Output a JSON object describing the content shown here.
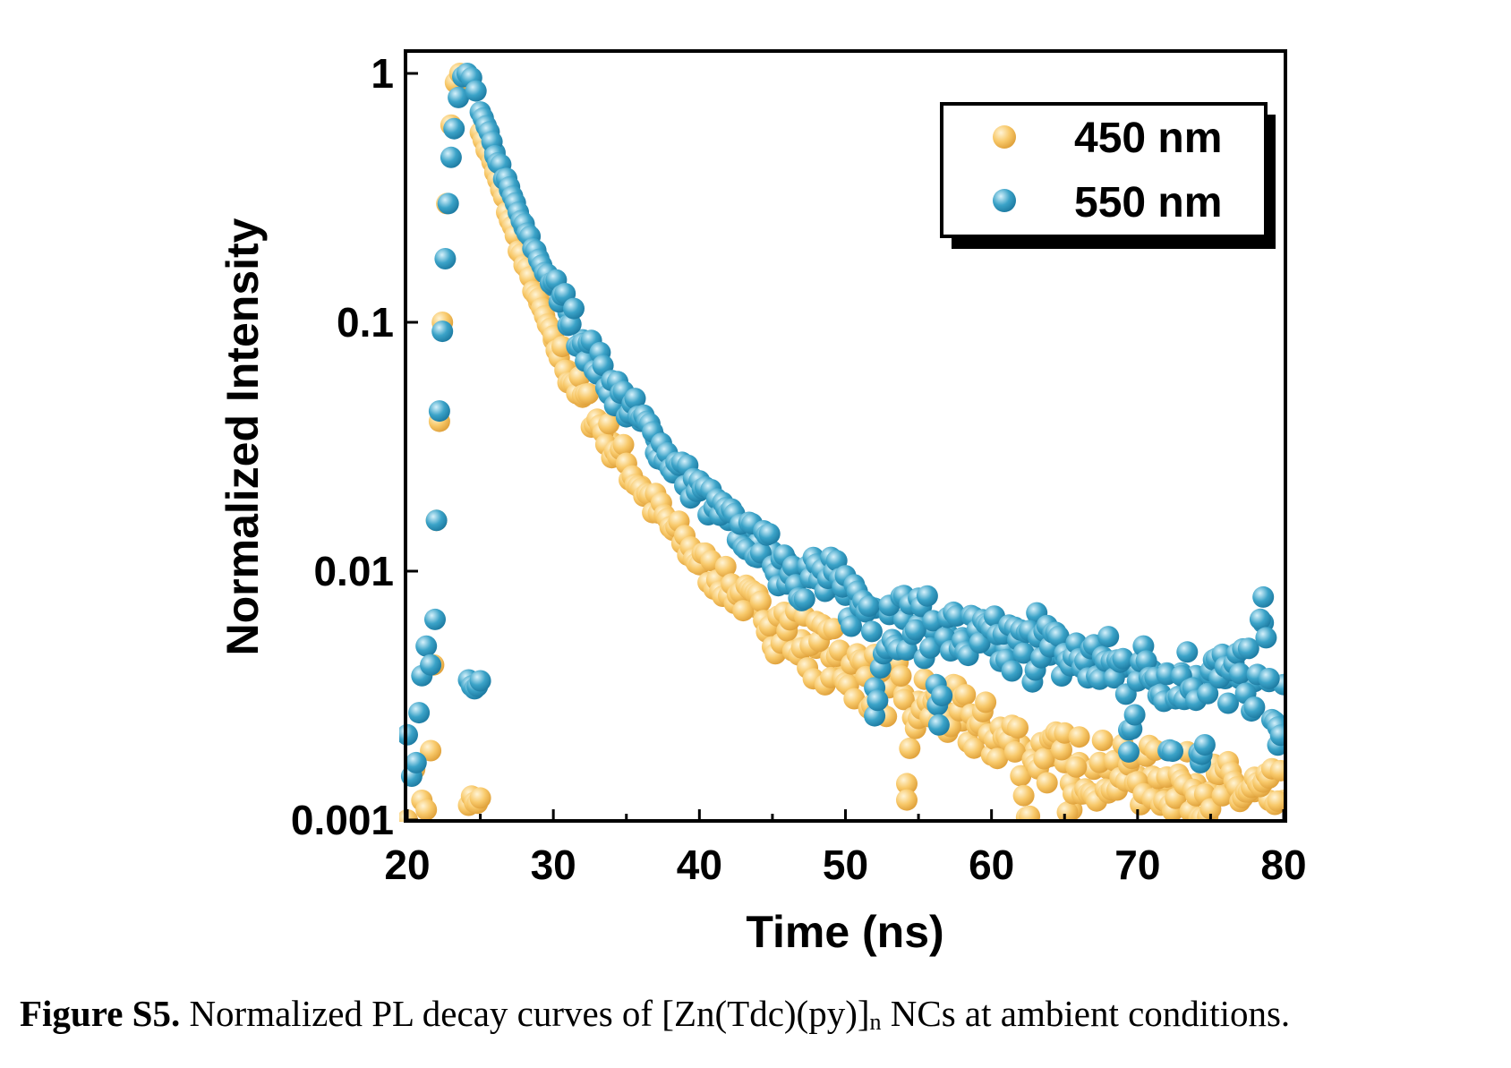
{
  "chart_data": {
    "type": "scatter",
    "xlabel": "Time (ns)",
    "ylabel": "Normalized Intensity",
    "xlim": [
      20,
      80
    ],
    "ylim": [
      0.001,
      1
    ],
    "yscale": "log",
    "x_ticks": [
      "20",
      "30",
      "40",
      "50",
      "60",
      "70",
      "80"
    ],
    "y_ticks": [
      "0.001",
      "0.01",
      "0.1",
      "1"
    ],
    "grid": false,
    "legend_position": "top-right",
    "series": [
      {
        "name": "450 nm",
        "color": "#F8C96A",
        "points": [
          [
            20.0,
            0.001
          ],
          [
            20.5,
            0.0016
          ],
          [
            21.0,
            0.0012
          ],
          [
            21.3,
            0.0011
          ],
          [
            21.6,
            0.0019
          ],
          [
            21.8,
            0.0042
          ],
          [
            22.0,
            0.016
          ],
          [
            22.2,
            0.04
          ],
          [
            22.4,
            0.1
          ],
          [
            22.7,
            0.3
          ],
          [
            23.0,
            0.62
          ],
          [
            23.3,
            0.92
          ],
          [
            23.6,
            1.0
          ],
          [
            24.0,
            0.95
          ],
          [
            25,
            0.58
          ],
          [
            26,
            0.4
          ],
          [
            27,
            0.26
          ],
          [
            28,
            0.17
          ],
          [
            29,
            0.12
          ],
          [
            30,
            0.085
          ],
          [
            31,
            0.064
          ],
          [
            32,
            0.05
          ],
          [
            33,
            0.04
          ],
          [
            34,
            0.033
          ],
          [
            35,
            0.027
          ],
          [
            36,
            0.022
          ],
          [
            37,
            0.018
          ],
          [
            38,
            0.015
          ],
          [
            39,
            0.013
          ],
          [
            40,
            0.011
          ],
          [
            41,
            0.0097
          ],
          [
            42,
            0.0087
          ],
          [
            43,
            0.0078
          ],
          [
            44,
            0.0071
          ],
          [
            45,
            0.0064
          ],
          [
            46,
            0.0058
          ],
          [
            47,
            0.0053
          ],
          [
            48,
            0.0049
          ],
          [
            49,
            0.0045
          ],
          [
            50,
            0.0042
          ],
          [
            51,
            0.0039
          ],
          [
            52,
            0.0036
          ],
          [
            53,
            0.0034
          ],
          [
            54,
            0.0032
          ],
          [
            55,
            0.003
          ],
          [
            56,
            0.0028
          ],
          [
            57,
            0.0027
          ],
          [
            58,
            0.0025
          ],
          [
            59,
            0.0024
          ],
          [
            60,
            0.0022
          ],
          [
            61,
            0.0021
          ],
          [
            62,
            0.002
          ],
          [
            63,
            0.0019
          ],
          [
            64,
            0.0018
          ],
          [
            65,
            0.0017
          ],
          [
            66,
            0.0017
          ],
          [
            67,
            0.0016
          ],
          [
            68,
            0.0016
          ],
          [
            69,
            0.0015
          ],
          [
            70,
            0.0015
          ],
          [
            71,
            0.0015
          ],
          [
            72,
            0.0014
          ],
          [
            73,
            0.0014
          ],
          [
            74,
            0.0014
          ],
          [
            75,
            0.0013
          ],
          [
            76,
            0.0013
          ],
          [
            77,
            0.0013
          ],
          [
            78,
            0.0013
          ],
          [
            79,
            0.0012
          ],
          [
            80,
            0.0012
          ],
          [
            54.2,
            0.0014
          ],
          [
            65.5,
            0.0011
          ],
          [
            62.4,
            0.001
          ]
        ]
      },
      {
        "name": "550 nm",
        "color": "#3BA3C8",
        "points": [
          [
            20.0,
            0.0022
          ],
          [
            20.3,
            0.0015
          ],
          [
            20.6,
            0.0017
          ],
          [
            20.8,
            0.0027
          ],
          [
            21.0,
            0.0038
          ],
          [
            21.3,
            0.005
          ],
          [
            21.6,
            0.0042
          ],
          [
            21.9,
            0.0064
          ],
          [
            22.0,
            0.016
          ],
          [
            22.2,
            0.044
          ],
          [
            22.4,
            0.092
          ],
          [
            22.6,
            0.18
          ],
          [
            22.8,
            0.3
          ],
          [
            23.0,
            0.46
          ],
          [
            23.2,
            0.6
          ],
          [
            23.5,
            0.8
          ],
          [
            23.8,
            0.97
          ],
          [
            24.1,
            1.0
          ],
          [
            24.4,
            0.96
          ],
          [
            24.7,
            0.85
          ],
          [
            25,
            0.7
          ],
          [
            26,
            0.48
          ],
          [
            27,
            0.34
          ],
          [
            28,
            0.24
          ],
          [
            29,
            0.18
          ],
          [
            30,
            0.14
          ],
          [
            31,
            0.11
          ],
          [
            32,
            0.085
          ],
          [
            33,
            0.068
          ],
          [
            34,
            0.056
          ],
          [
            35,
            0.047
          ],
          [
            36,
            0.04
          ],
          [
            37,
            0.034
          ],
          [
            38,
            0.028
          ],
          [
            39,
            0.024
          ],
          [
            40,
            0.021
          ],
          [
            41,
            0.018
          ],
          [
            42,
            0.016
          ],
          [
            43,
            0.014
          ],
          [
            44,
            0.013
          ],
          [
            45,
            0.012
          ],
          [
            46,
            0.011
          ],
          [
            47,
            0.01
          ],
          [
            48,
            0.0093
          ],
          [
            49,
            0.0086
          ],
          [
            50,
            0.008
          ],
          [
            51,
            0.0075
          ],
          [
            52,
            0.0071
          ],
          [
            53,
            0.0067
          ],
          [
            54,
            0.0064
          ],
          [
            55,
            0.0061
          ],
          [
            56,
            0.0058
          ],
          [
            57,
            0.0056
          ],
          [
            58,
            0.0054
          ],
          [
            59,
            0.0052
          ],
          [
            60,
            0.005
          ],
          [
            61,
            0.0049
          ],
          [
            62,
            0.0048
          ],
          [
            63,
            0.0047
          ],
          [
            64,
            0.0046
          ],
          [
            65,
            0.0045
          ],
          [
            66,
            0.0044
          ],
          [
            67,
            0.0043
          ],
          [
            68,
            0.0042
          ],
          [
            69,
            0.0041
          ],
          [
            70,
            0.004
          ],
          [
            71,
            0.004
          ],
          [
            72,
            0.0039
          ],
          [
            73,
            0.0039
          ],
          [
            74,
            0.0038
          ],
          [
            75,
            0.0038
          ],
          [
            76,
            0.0037
          ],
          [
            77,
            0.0037
          ],
          [
            78,
            0.0036
          ],
          [
            79,
            0.0036
          ],
          [
            80,
            0.0035
          ],
          [
            52.0,
            0.0034
          ],
          [
            56.3,
            0.0029
          ],
          [
            74.3,
            0.0017
          ],
          [
            72.1,
            0.0019
          ],
          [
            78.6,
            0.0062
          ],
          [
            63.1,
            0.0068
          ],
          [
            69.4,
            0.0023
          ],
          [
            79.6,
            0.002
          ]
        ]
      }
    ]
  },
  "caption": {
    "label": "Figure S5.",
    "text_before": " Normalized PL decay curves of [Zn(Tdc)(py)]",
    "subscript": "n",
    "text_after": " NCs at ambient conditions."
  }
}
